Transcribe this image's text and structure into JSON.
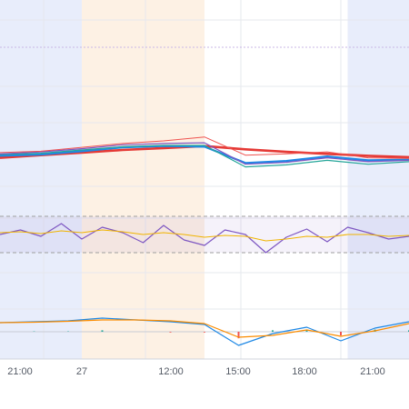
{
  "chart_data": {
    "type": "line",
    "panes": [
      "price",
      "rsi",
      "macd"
    ],
    "x_ticks": [
      "21:00",
      "27",
      "12:00",
      "15:00",
      "18:00",
      "21:00"
    ],
    "session_bands": [
      {
        "from": 0,
        "to": 0.2,
        "color": "#e8edfb"
      },
      {
        "from": 0.2,
        "to": 0.5,
        "color": "#fdf1e4"
      },
      {
        "from": 0.85,
        "to": 1.0,
        "color": "#e8edfb"
      }
    ],
    "grid": true,
    "price_pane": {
      "series": [
        {
          "color": "#e53935",
          "values": [
            100.0,
            100.4,
            100.8,
            101.2,
            101.5,
            101.8,
            101.3,
            100.9,
            100.6,
            100.3,
            100.1
          ]
        },
        {
          "color": "#1e88e5",
          "values": [
            100.3,
            100.5,
            101.0,
            101.6,
            101.8,
            101.7,
            99.2,
            99.5,
            100.2,
            99.6,
            99.7
          ]
        },
        {
          "color": "#26a69a",
          "values": [
            100.5,
            100.7,
            101.2,
            101.7,
            101.9,
            101.9,
            98.6,
            98.9,
            99.6,
            99.0,
            99.4
          ]
        },
        {
          "color": "#7e57c2",
          "values": [
            100.6,
            100.9,
            101.4,
            102.0,
            102.2,
            102.3,
            99.0,
            99.3,
            100.0,
            99.4,
            99.6
          ]
        },
        {
          "color": "#ef5350",
          "values": [
            100.8,
            101.0,
            101.6,
            102.2,
            102.6,
            103.2,
            100.4,
            100.6,
            100.9,
            100.0,
            99.9
          ]
        }
      ]
    },
    "rsi_pane": {
      "upper": 70,
      "lower": 30,
      "series": [
        {
          "color": "#7e57c2",
          "values": [
            50,
            55,
            48,
            62,
            45,
            58,
            52,
            41,
            60,
            44,
            38,
            55,
            50,
            30,
            47,
            56,
            42,
            58,
            52,
            45,
            48
          ]
        },
        {
          "color": "#f0b400",
          "values": [
            52,
            53,
            51,
            54,
            52,
            55,
            53,
            50,
            52,
            50,
            47,
            49,
            48,
            43,
            45,
            48,
            47,
            50,
            50,
            48,
            49
          ]
        }
      ]
    },
    "macd_pane": {
      "series": [
        {
          "color": "#1e88e5",
          "values": [
            0,
            0.1,
            0.2,
            0.5,
            0.3,
            0.1,
            -0.2,
            -2.5,
            -1.2,
            -0.5,
            -2.0,
            -0.6,
            0.1
          ]
        },
        {
          "color": "#fb8c00",
          "values": [
            0,
            0.05,
            0.15,
            0.3,
            0.3,
            0.2,
            -0.1,
            -1.6,
            -1.4,
            -0.8,
            -1.5,
            -0.9,
            -0.1
          ]
        }
      ]
    }
  }
}
